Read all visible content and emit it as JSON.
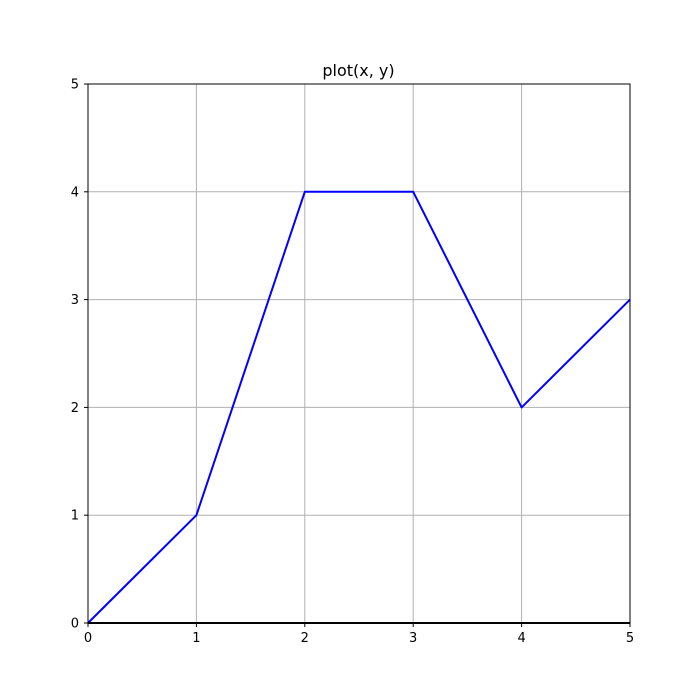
{
  "chart_data": {
    "type": "line",
    "title": "plot(x, y)",
    "xlabel": "",
    "ylabel": "",
    "xlim": [
      0,
      5
    ],
    "ylim": [
      0,
      5
    ],
    "xticks": [
      "0",
      "1",
      "2",
      "3",
      "4",
      "5"
    ],
    "yticks": [
      "0",
      "1",
      "2",
      "3",
      "4",
      "5"
    ],
    "grid": true,
    "series": [
      {
        "x": [
          0,
          1,
          2,
          3,
          4,
          5
        ],
        "y": [
          0,
          1,
          4,
          4,
          2,
          3
        ],
        "color": "#0000ff"
      }
    ]
  }
}
